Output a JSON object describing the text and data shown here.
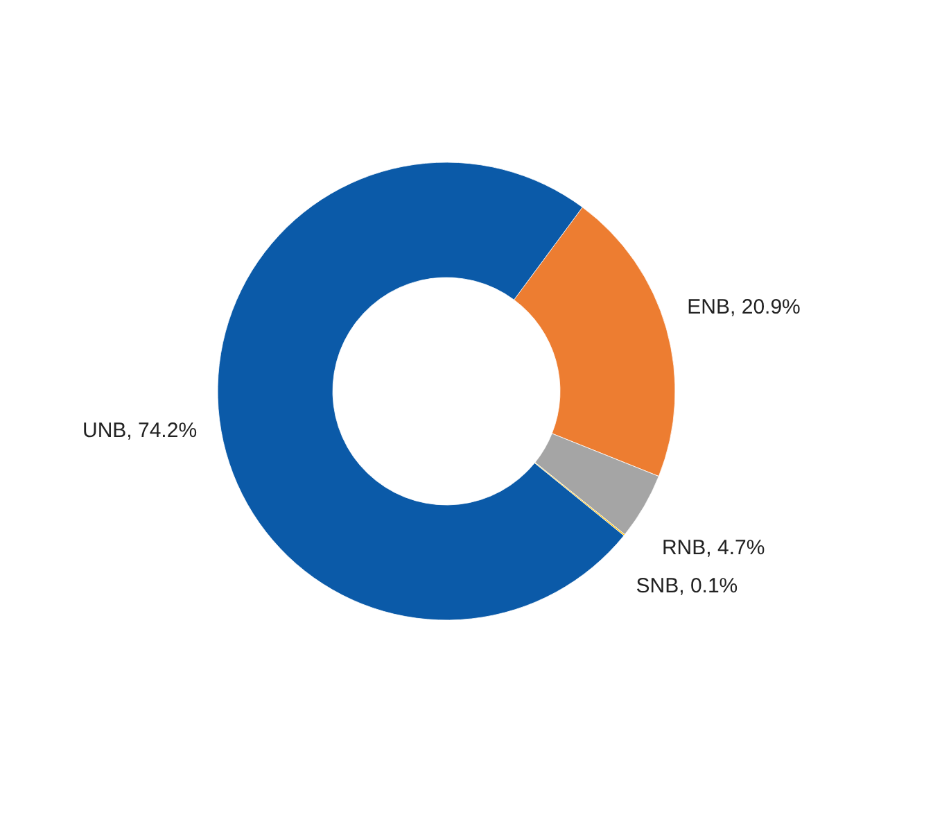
{
  "chart_data": {
    "type": "donut",
    "categories": [
      "ENB",
      "RNB",
      "SNB",
      "UNB"
    ],
    "values": [
      20.9,
      4.7,
      0.1,
      74.2
    ],
    "colors": [
      "#ed7d31",
      "#a5a5a5",
      "#ffc000",
      "#0b5aa8"
    ],
    "value_labels": [
      "20.9%",
      "4.7%",
      "0.1%",
      "74.2%"
    ]
  }
}
